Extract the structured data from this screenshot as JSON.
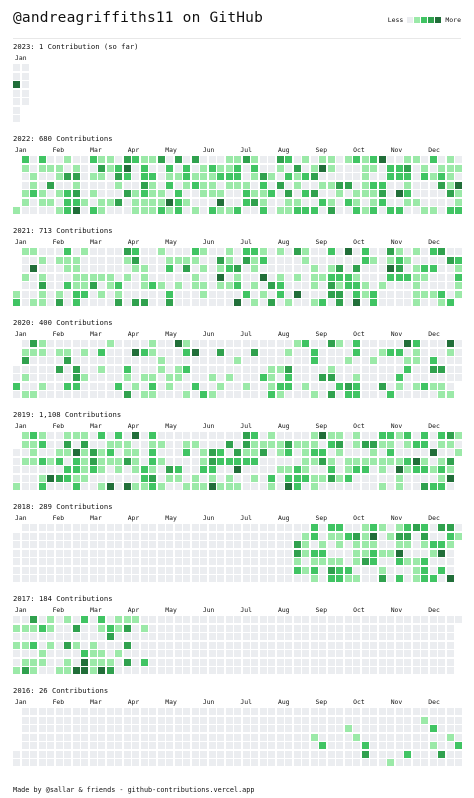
{
  "header": {
    "title": "@andreagriffiths11 on GitHub",
    "legend_less": "Less",
    "legend_more": "More"
  },
  "palette": [
    "#ebedf0",
    "#9be9a8",
    "#40c463",
    "#30a14e",
    "#216e39"
  ],
  "years": [
    {
      "title": "2023: 1 Contribution (so far)",
      "months": [
        "Jan"
      ],
      "weeks": 1,
      "first_weekday": 0,
      "days": 12,
      "seed": 11,
      "active": [
        [
          0,
          1
        ]
      ],
      "forced": [
        [
          0,
          2,
          4
        ]
      ]
    },
    {
      "title": "2022: 680 Contributions",
      "months": [
        "Jan",
        "Feb",
        "Mar",
        "Apr",
        "May",
        "Jun",
        "Jul",
        "Aug",
        "Sep",
        "Oct",
        "Nov",
        "Dec"
      ],
      "weeks": 53,
      "first_weekday": 6,
      "days": 365,
      "seed": 22,
      "active": [
        [
          0,
          53
        ]
      ],
      "density": 0.62
    },
    {
      "title": "2021: 713 Contributions",
      "months": [
        "Jan",
        "Feb",
        "Mar",
        "Apr",
        "May",
        "Jun",
        "Jul",
        "Aug",
        "Sep",
        "Oct",
        "Nov",
        "Dec"
      ],
      "weeks": 53,
      "first_weekday": 5,
      "days": 365,
      "seed": 21,
      "active": [
        [
          0,
          53
        ]
      ],
      "density": 0.48
    },
    {
      "title": "2020: 400 Contributions",
      "months": [
        "Jan",
        "Feb",
        "Mar",
        "Apr",
        "May",
        "Jun",
        "Jul",
        "Aug",
        "Sep",
        "Oct",
        "Nov",
        "Dec"
      ],
      "weeks": 53,
      "first_weekday": 3,
      "days": 366,
      "seed": 20,
      "active": [
        [
          0,
          53
        ]
      ],
      "density": 0.3
    },
    {
      "title": "2019: 1,108 Contributions",
      "months": [
        "Jan",
        "Feb",
        "Mar",
        "Apr",
        "May",
        "Jun",
        "Jul",
        "Aug",
        "Sep",
        "Oct",
        "Nov",
        "Dec"
      ],
      "weeks": 53,
      "first_weekday": 2,
      "days": 365,
      "seed": 19,
      "active": [
        [
          0,
          53
        ]
      ],
      "density": 0.55
    },
    {
      "title": "2018: 289 Contributions",
      "months": [
        "Jan",
        "Feb",
        "Mar",
        "Apr",
        "May",
        "Jun",
        "Jul",
        "Aug",
        "Sep",
        "Oct",
        "Nov",
        "Dec"
      ],
      "weeks": 53,
      "first_weekday": 1,
      "days": 365,
      "seed": 18,
      "active": [
        [
          33,
          53
        ]
      ],
      "density": 0.62
    },
    {
      "title": "2017: 184 Contributions",
      "months": [
        "Jan",
        "Feb",
        "Mar",
        "Apr",
        "May",
        "Jun",
        "Jul",
        "Aug",
        "Sep",
        "Oct",
        "Nov",
        "Dec"
      ],
      "weeks": 53,
      "first_weekday": 0,
      "days": 365,
      "seed": 17,
      "active": [
        [
          0,
          16
        ]
      ],
      "density": 0.48
    },
    {
      "title": "2016: 26 Contributions",
      "months": [
        "Jan",
        "Feb",
        "Mar",
        "Apr",
        "May",
        "Jun",
        "Jul",
        "Aug",
        "Sep",
        "Oct",
        "Nov",
        "Dec"
      ],
      "weeks": 53,
      "first_weekday": 5,
      "days": 366,
      "seed": 16,
      "active": [],
      "forced": [
        [
          35,
          3,
          1
        ],
        [
          36,
          4,
          2
        ],
        [
          39,
          2,
          1
        ],
        [
          40,
          3,
          1
        ],
        [
          41,
          4,
          2
        ],
        [
          41,
          5,
          3
        ],
        [
          44,
          6,
          1
        ],
        [
          46,
          5,
          2
        ],
        [
          48,
          1,
          1
        ],
        [
          49,
          2,
          2
        ],
        [
          49,
          4,
          1
        ],
        [
          50,
          5,
          3
        ],
        [
          51,
          3,
          1
        ],
        [
          52,
          4,
          2
        ]
      ]
    }
  ],
  "footer": {
    "text": "Made by @sallar & friends - github-contributions.vercel.app"
  }
}
